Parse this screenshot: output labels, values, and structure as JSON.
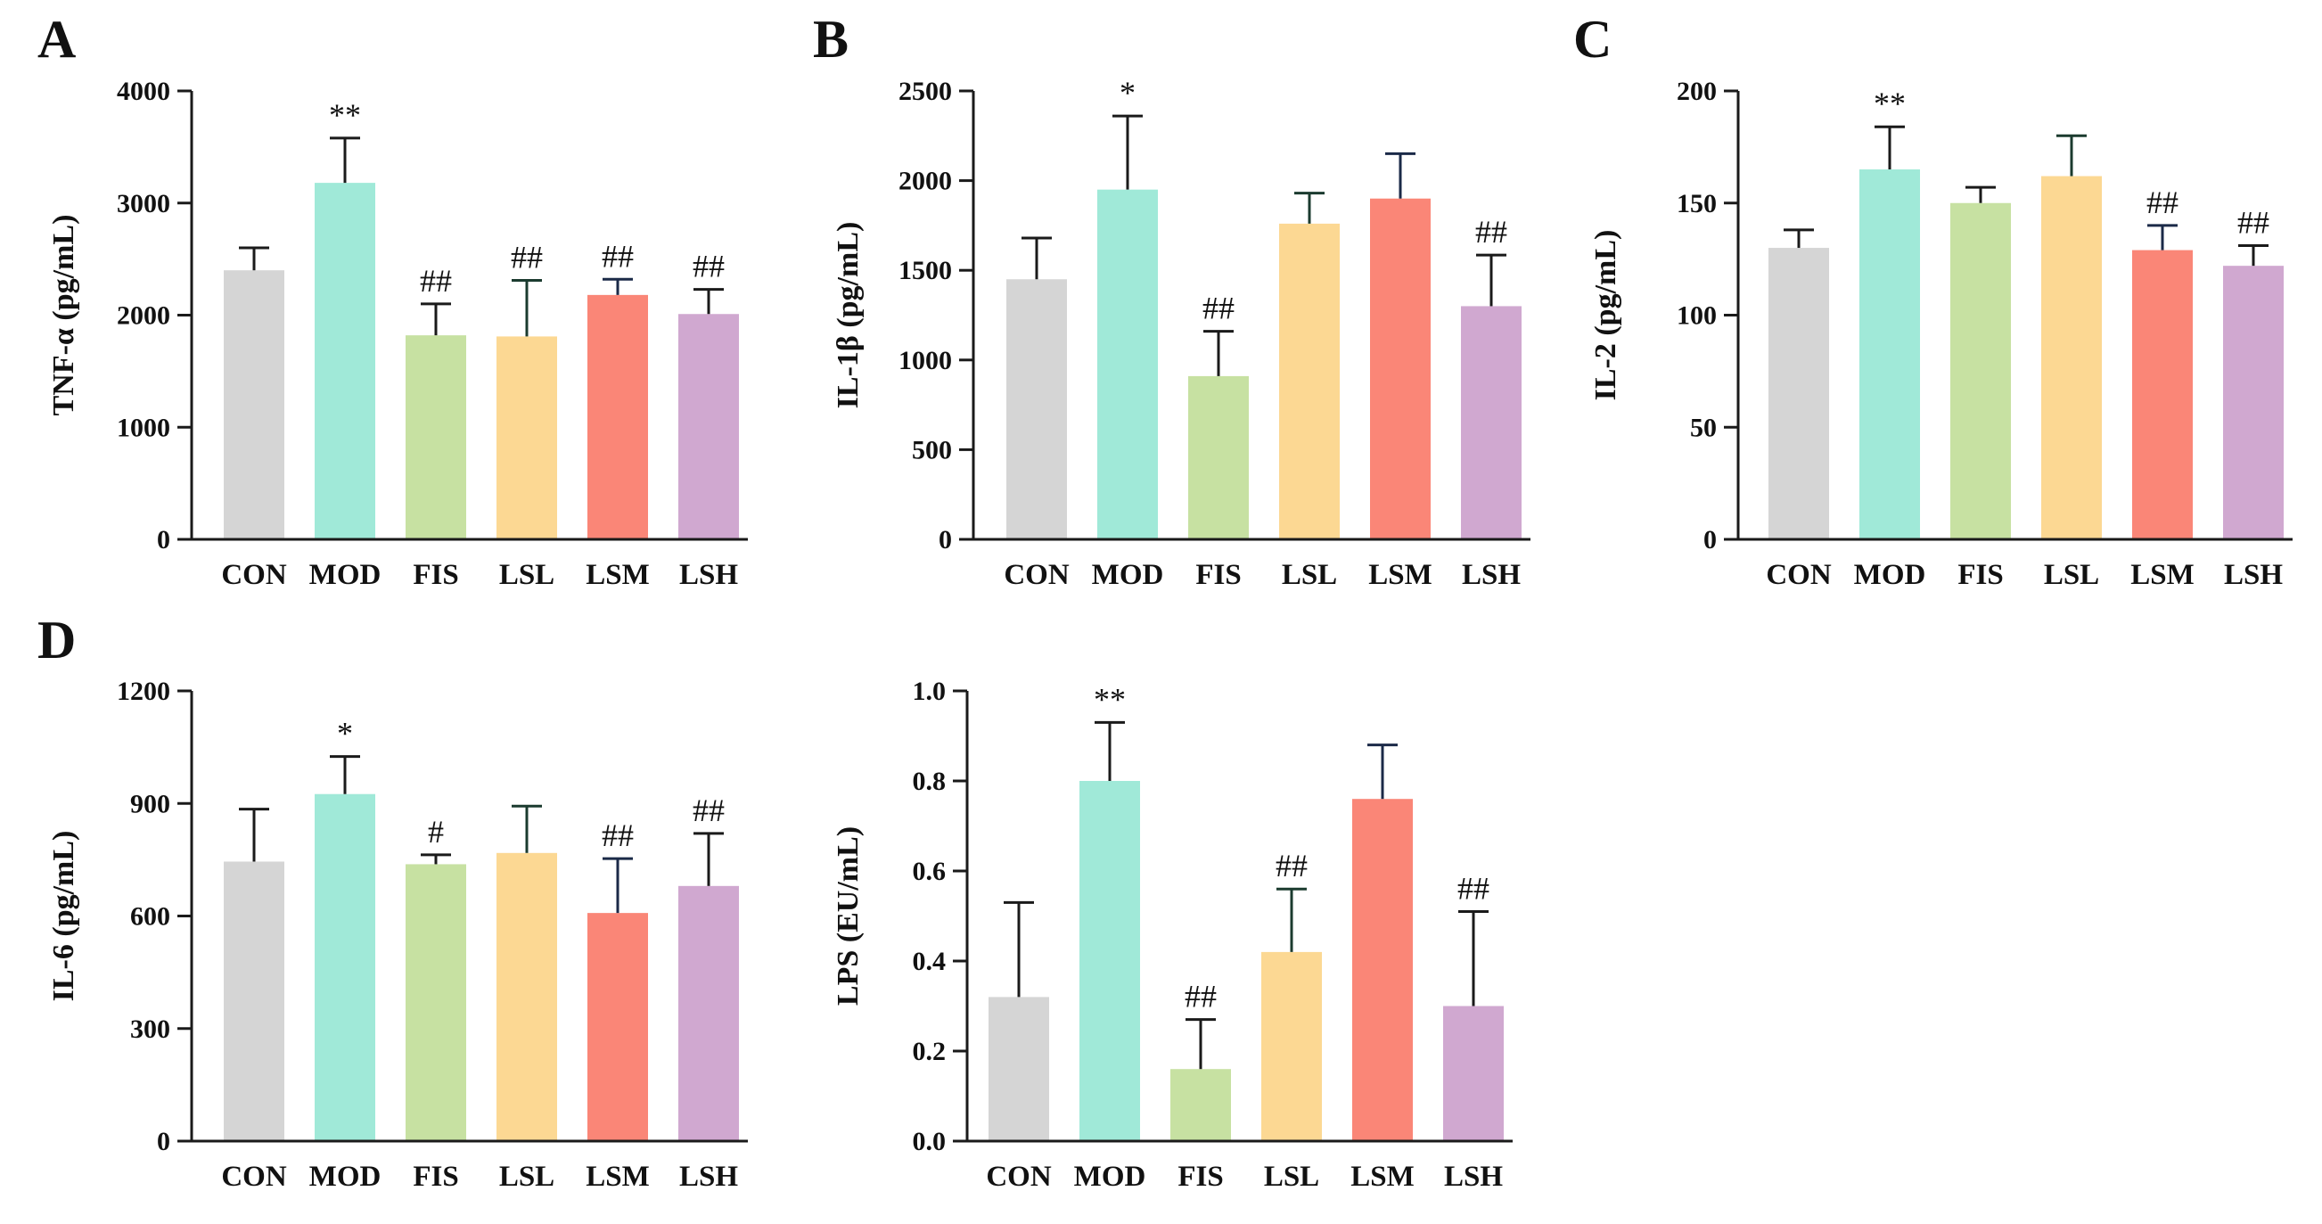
{
  "chart_data": [
    {
      "type": "bar",
      "panel": "A",
      "ylabel": "TNF-α (pg/mL)",
      "ylim": [
        0,
        4000
      ],
      "yticks": [
        0,
        1000,
        2000,
        3000,
        4000
      ],
      "categories": [
        "CON",
        "MOD",
        "FIS",
        "LSL",
        "LSM",
        "LSH"
      ],
      "values": [
        2400,
        3180,
        1820,
        1810,
        2180,
        2010
      ],
      "errors": [
        200,
        400,
        280,
        500,
        140,
        220
      ],
      "annotations": [
        "",
        "**",
        "##",
        "##",
        "##",
        "##"
      ]
    },
    {
      "type": "bar",
      "panel": "B",
      "ylabel": "IL-1β (pg/mL)",
      "ylim": [
        0,
        2500
      ],
      "yticks": [
        0,
        500,
        1000,
        1500,
        2000,
        2500
      ],
      "categories": [
        "CON",
        "MOD",
        "FIS",
        "LSL",
        "LSM",
        "LSH"
      ],
      "values": [
        1450,
        1950,
        910,
        1760,
        1900,
        1300
      ],
      "errors": [
        230,
        410,
        250,
        170,
        250,
        285
      ],
      "annotations": [
        "",
        "*",
        "##",
        "",
        "",
        "##"
      ]
    },
    {
      "type": "bar",
      "panel": "C",
      "ylabel": "IL-2 (pg/mL)",
      "ylim": [
        0,
        200
      ],
      "yticks": [
        0,
        50,
        100,
        150,
        200
      ],
      "categories": [
        "CON",
        "MOD",
        "FIS",
        "LSL",
        "LSM",
        "LSH"
      ],
      "values": [
        130,
        165,
        150,
        162,
        129,
        122
      ],
      "errors": [
        8,
        19,
        7,
        18,
        11,
        9
      ],
      "annotations": [
        "",
        "**",
        "",
        "",
        "##",
        "##"
      ]
    },
    {
      "type": "bar",
      "panel": "D",
      "ylabel": "IL-6 (pg/mL)",
      "ylim": [
        0,
        1200
      ],
      "yticks": [
        0,
        300,
        600,
        900,
        1200
      ],
      "categories": [
        "CON",
        "MOD",
        "FIS",
        "LSL",
        "LSM",
        "LSH"
      ],
      "values": [
        745,
        925,
        738,
        768,
        608,
        680
      ],
      "errors": [
        140,
        100,
        25,
        125,
        145,
        140
      ],
      "annotations": [
        "",
        "*",
        "#",
        "",
        "##",
        "##"
      ]
    },
    {
      "type": "bar",
      "panel": "",
      "ylabel": "LPS (EU/mL)",
      "ylim": [
        0,
        1.0
      ],
      "yticks": [
        "0.0",
        "0.2",
        "0.4",
        "0.6",
        "0.8",
        "1.0"
      ],
      "categories": [
        "CON",
        "MOD",
        "FIS",
        "LSL",
        "LSM",
        "LSH"
      ],
      "values": [
        0.32,
        0.8,
        0.16,
        0.42,
        0.76,
        0.3
      ],
      "errors": [
        0.21,
        0.13,
        0.11,
        0.14,
        0.12,
        0.21
      ],
      "annotations": [
        "",
        "**",
        "##",
        "##",
        "",
        "##"
      ]
    }
  ],
  "colors": {
    "bars": [
      "#d5d5d5",
      "#a0e9d8",
      "#c7e1a2",
      "#fcd893",
      "#fa8677",
      "#d0a8d0"
    ],
    "error_bars": [
      "#1a1a1a",
      "#1a1a1a",
      "#1a1a1a",
      "#1b3b2f",
      "#1b2a48",
      "#1a1a1a"
    ]
  }
}
